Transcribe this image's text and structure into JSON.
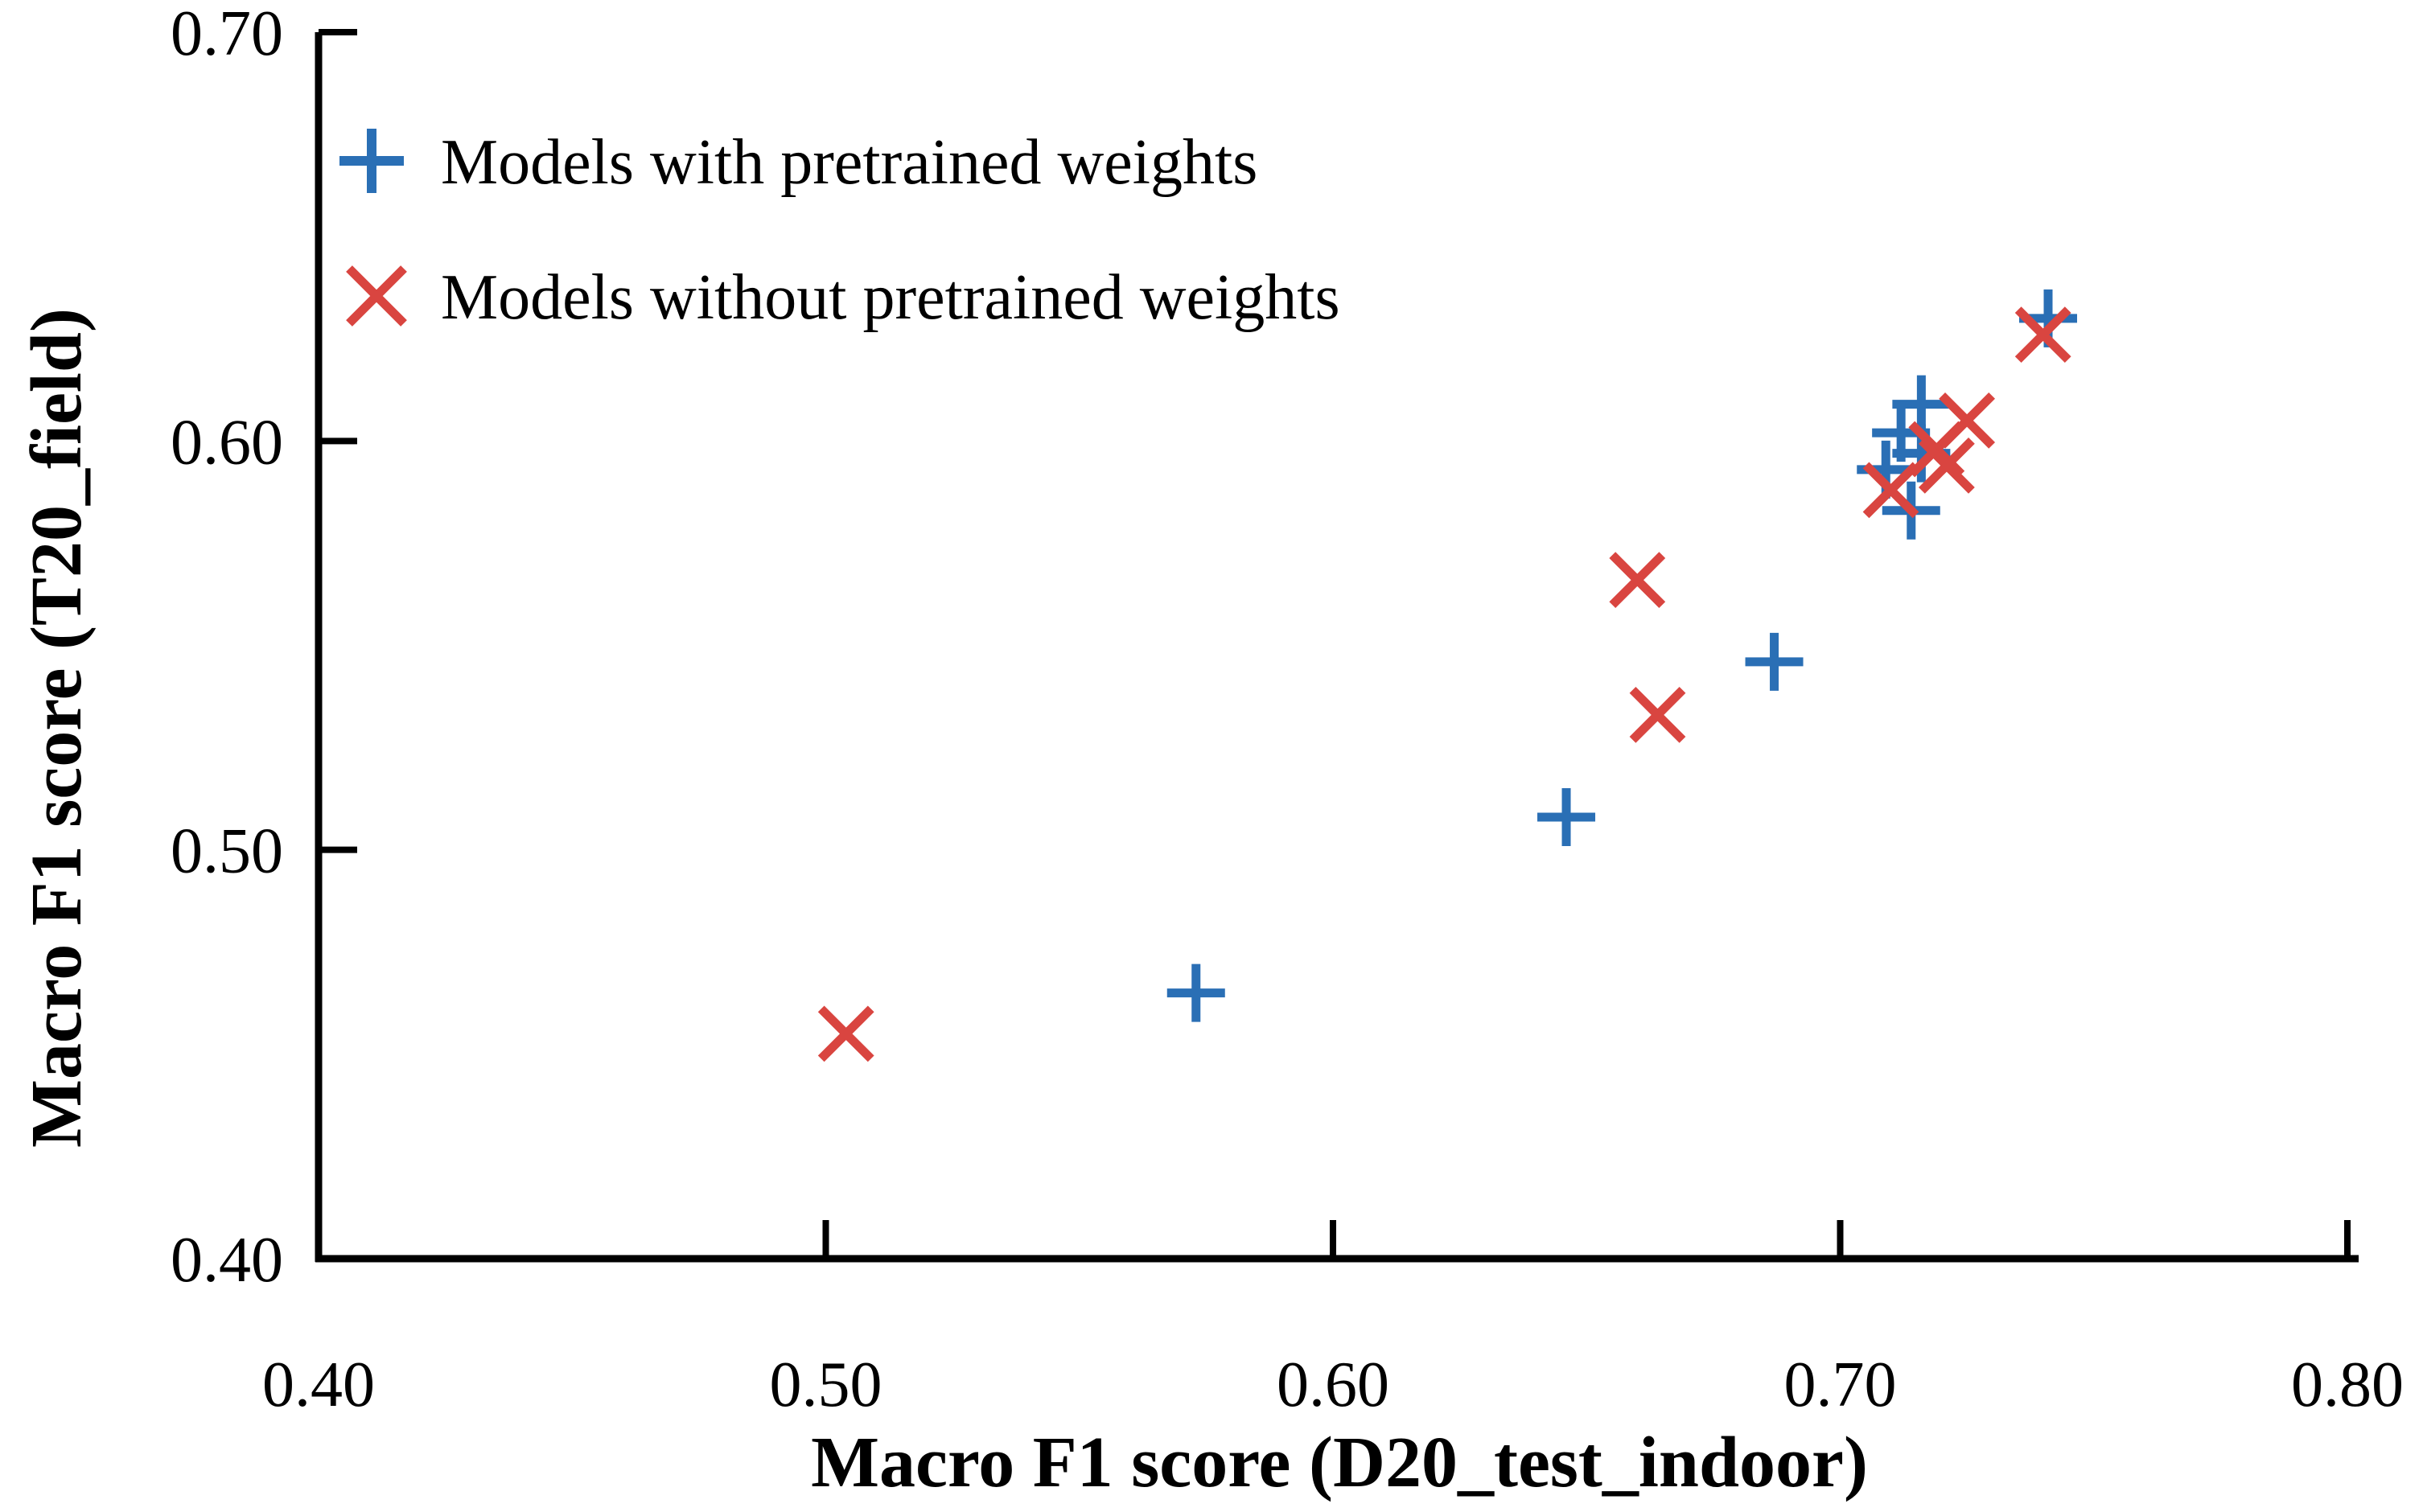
{
  "figure": {
    "description": "Scatter plot comparing macro F1 scores of models on two test sets",
    "background": "#ffffff"
  },
  "colors": {
    "with_pretrained": "#2A6FB5",
    "without_pretrained": "#D94540",
    "axis": "#000000",
    "text": "#000000"
  },
  "legend": {
    "item1_label": "Models with pretrained weights",
    "item2_label": "Models without pretrained weights",
    "item1_marker": "plus-icon",
    "item2_marker": "cross-icon"
  },
  "chart_data": {
    "type": "scatter",
    "title": "",
    "xlabel": "Macro F1 score (D20_test_indoor)",
    "ylabel": "Macro F1 score (T20_field)",
    "xlim": [
      0.4,
      0.8
    ],
    "ylim": [
      0.4,
      0.7
    ],
    "xticks": [
      0.4,
      0.5,
      0.6,
      0.7,
      0.8
    ],
    "yticks": [
      0.4,
      0.5,
      0.6,
      0.7
    ],
    "xtick_labels": [
      "0.40",
      "0.50",
      "0.60",
      "0.70",
      "0.80"
    ],
    "ytick_labels": [
      "0.40",
      "0.50",
      "0.60",
      "0.70"
    ],
    "grid": false,
    "legend_position": "top-left-inside",
    "series": [
      {
        "name": "Models with pretrained weights",
        "marker": "plus",
        "color": "#2A6FB5",
        "points": [
          [
            0.573,
            0.465
          ],
          [
            0.646,
            0.508
          ],
          [
            0.687,
            0.546
          ],
          [
            0.709,
            0.593
          ],
          [
            0.712,
            0.602
          ],
          [
            0.716,
            0.609
          ],
          [
            0.716,
            0.597
          ],
          [
            0.714,
            0.583
          ],
          [
            0.741,
            0.63
          ]
        ]
      },
      {
        "name": "Models without pretrained weights",
        "marker": "cross",
        "color": "#D94540",
        "points": [
          [
            0.504,
            0.455
          ],
          [
            0.66,
            0.566
          ],
          [
            0.664,
            0.533
          ],
          [
            0.71,
            0.588
          ],
          [
            0.719,
            0.598
          ],
          [
            0.721,
            0.594
          ],
          [
            0.725,
            0.605
          ],
          [
            0.74,
            0.626
          ]
        ]
      }
    ]
  }
}
